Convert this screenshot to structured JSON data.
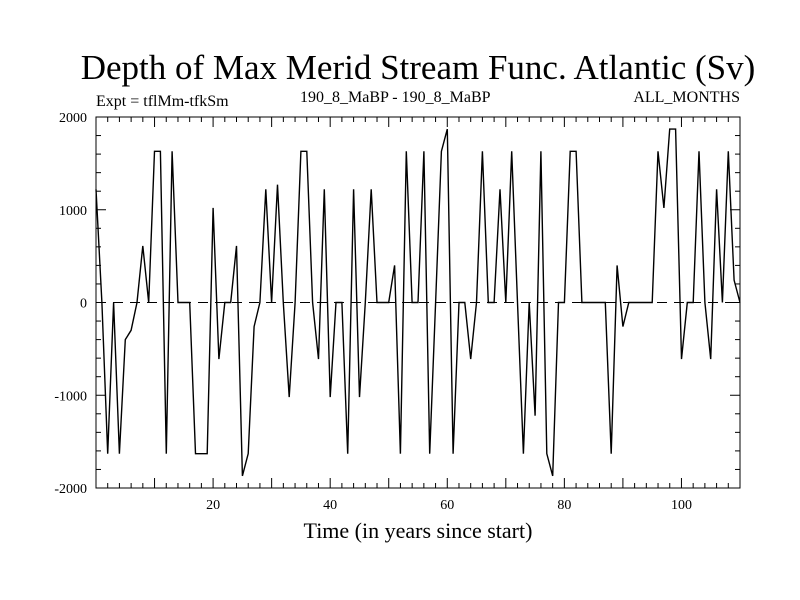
{
  "header": {
    "title": "Depth of Max Merid Stream Func. Atlantic (Sv)",
    "expt": "Expt = tflMm-tfkSm",
    "center": "190_8_MaBP - 190_8_MaBP",
    "right": "ALL_MONTHS"
  },
  "chart_data": {
    "type": "line",
    "title": "Depth of Max Merid Stream Func. Atlantic (Sv)",
    "xlabel": "Time (in years since start)",
    "ylabel": "",
    "xlim": [
      0,
      110
    ],
    "ylim": [
      -2000,
      2000
    ],
    "x_ticks": [
      20,
      40,
      60,
      80,
      100
    ],
    "y_ticks": [
      -2000,
      -1000,
      0,
      1000,
      2000
    ],
    "grid": false,
    "zero_line": "dashed",
    "series": [
      {
        "x": [
          0,
          1,
          2,
          3,
          4,
          5,
          6,
          7,
          8,
          9,
          10,
          11,
          12,
          13,
          14,
          15,
          16,
          17,
          18,
          19,
          20,
          21,
          22,
          23,
          24,
          25,
          26,
          27,
          28,
          29,
          30,
          31,
          32,
          33,
          34,
          35,
          36,
          37,
          38,
          39,
          40,
          41,
          42,
          43,
          44,
          45,
          46,
          47,
          48,
          49,
          50,
          51,
          52,
          53,
          54,
          55,
          56,
          57,
          58,
          59,
          60,
          61,
          62,
          63,
          64,
          65,
          66,
          67,
          68,
          69,
          70,
          71,
          72,
          73,
          74,
          75,
          76,
          77,
          78,
          79,
          80,
          81,
          82,
          83,
          84,
          85,
          86,
          87,
          88,
          89,
          90,
          91,
          92,
          93,
          94,
          95,
          96,
          97,
          98,
          99,
          100,
          101,
          102,
          103,
          104,
          105,
          106,
          107,
          108,
          109,
          110
        ],
        "values": [
          1220,
          0,
          -1630,
          0,
          -1630,
          -400,
          -300,
          0,
          610,
          0,
          1630,
          1630,
          -1630,
          1630,
          0,
          0,
          0,
          -1630,
          -1630,
          -1630,
          1020,
          -610,
          0,
          0,
          610,
          -1870,
          -1630,
          -260,
          0,
          1220,
          0,
          1270,
          0,
          -1020,
          0,
          1630,
          1630,
          0,
          -610,
          1220,
          -1020,
          0,
          0,
          -1630,
          1220,
          -1020,
          0,
          1220,
          0,
          0,
          0,
          400,
          -1630,
          1630,
          0,
          0,
          1630,
          -1630,
          0,
          1630,
          1870,
          -1630,
          0,
          0,
          -610,
          0,
          1630,
          0,
          0,
          1220,
          0,
          1630,
          0,
          -1630,
          0,
          -1220,
          1630,
          -1630,
          -1870,
          0,
          0,
          1630,
          1630,
          0,
          0,
          0,
          0,
          0,
          -1630,
          400,
          -260,
          0,
          0,
          0,
          0,
          0,
          1630,
          1020,
          1870,
          1870,
          -610,
          0,
          0,
          1630,
          0,
          -610,
          1220,
          0,
          1630,
          240,
          0
        ]
      }
    ]
  }
}
